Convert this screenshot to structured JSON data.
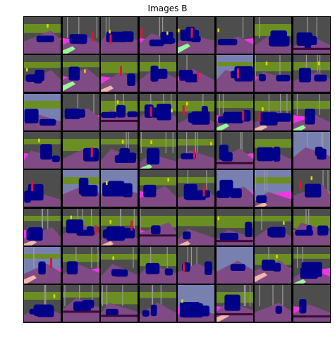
{
  "figure": {
    "title": "Images B"
  },
  "grid": {
    "rows": 8,
    "cols": 8
  },
  "palette": {
    "road": "#804a84",
    "car": "#000088",
    "sky": "#4d4d4d",
    "vegetation": "#6b8e23",
    "sidewalk": "#f235e8",
    "pole": "#999999",
    "sign": "#dddd00",
    "person": "#dc143c",
    "terrain": "#98fb98",
    "curb": "#f0b8a8",
    "dark": "#3a0a3a",
    "light_sky": "#7880b0"
  }
}
